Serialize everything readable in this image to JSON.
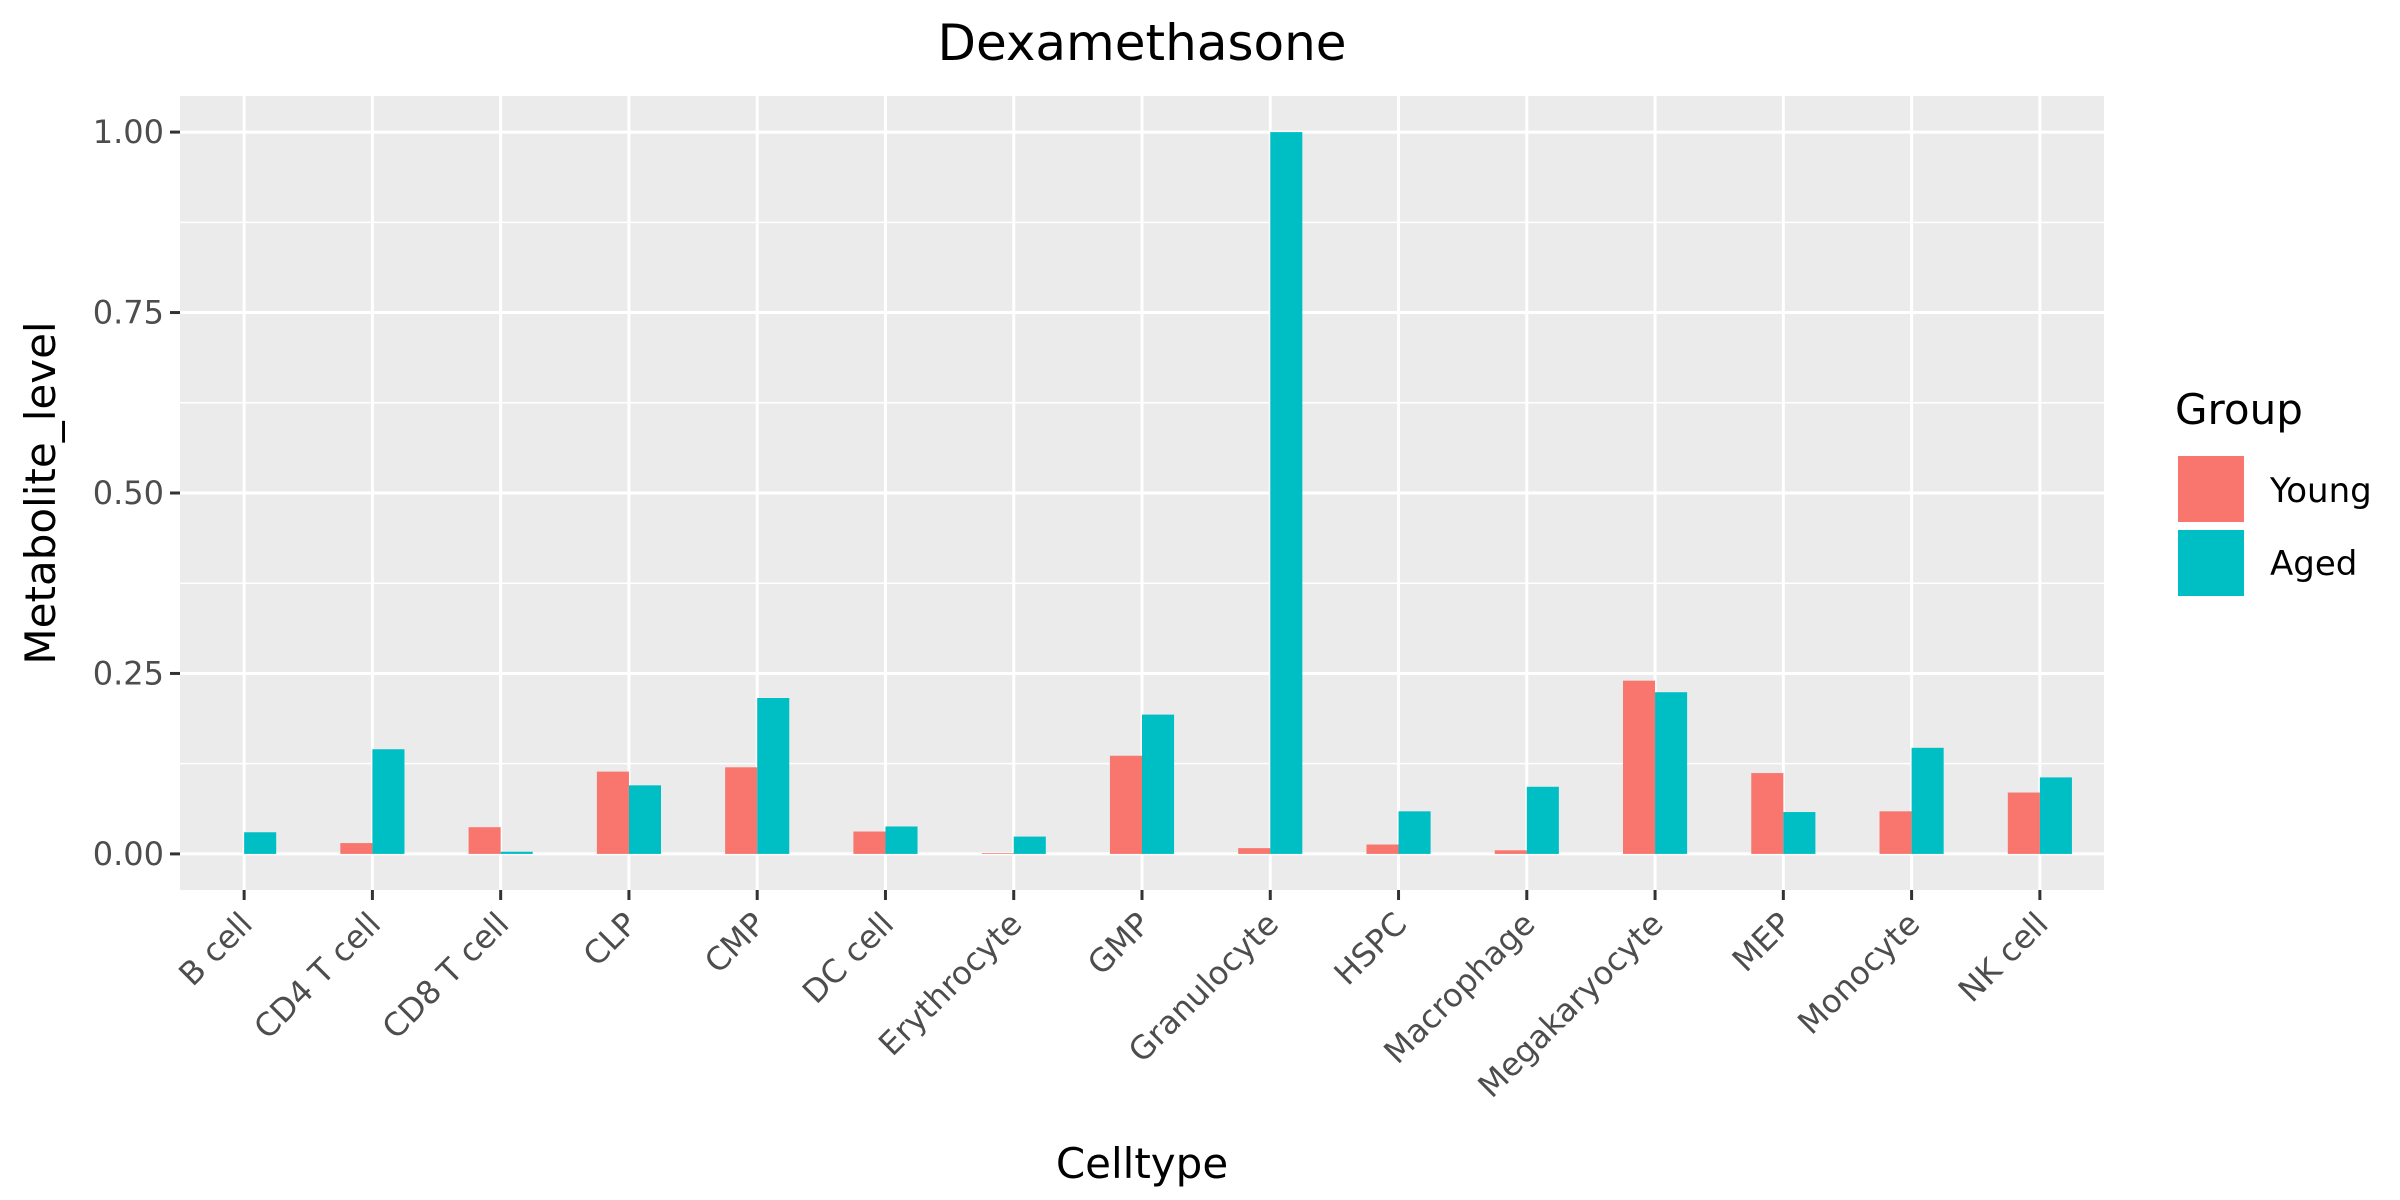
{
  "chart_data": {
    "type": "bar",
    "title": "Dexamethasone",
    "xlabel": "Celltype",
    "ylabel": "Metabolite_level",
    "ylim": [
      -0.05,
      1.05
    ],
    "yticks": [
      0.0,
      0.25,
      0.5,
      0.75,
      1.0
    ],
    "ytick_labels": [
      "0.00",
      "0.25",
      "0.50",
      "0.75",
      "1.00"
    ],
    "grid": true,
    "legend": {
      "title": "Group",
      "position": "right"
    },
    "categories": [
      "B cell",
      "CD4 T cell",
      "CD8 T cell",
      "CLP",
      "CMP",
      "DC cell",
      "Erythrocyte",
      "GMP",
      "Granulocyte",
      "HSPC",
      "Macrophage",
      "Megakaryocyte",
      "MEP",
      "Monocyte",
      "NK cell"
    ],
    "series": [
      {
        "name": "Young",
        "color": "#F8766D",
        "values": [
          0.0,
          0.015,
          0.037,
          0.114,
          0.12,
          0.031,
          0.001,
          0.136,
          0.008,
          0.013,
          0.005,
          0.24,
          0.112,
          0.059,
          0.085
        ]
      },
      {
        "name": "Aged",
        "color": "#00BFC4",
        "values": [
          0.03,
          0.145,
          0.003,
          0.095,
          0.216,
          0.038,
          0.024,
          0.193,
          1.0,
          0.059,
          0.093,
          0.224,
          0.058,
          0.147,
          0.106
        ]
      }
    ]
  }
}
